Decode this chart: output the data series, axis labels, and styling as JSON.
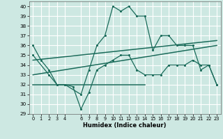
{
  "xlabel": "Humidex (Indice chaleur)",
  "xlim": [
    -0.5,
    23.5
  ],
  "ylim": [
    29,
    40.5
  ],
  "yticks": [
    29,
    30,
    31,
    32,
    33,
    34,
    35,
    36,
    37,
    38,
    39,
    40
  ],
  "xticks": [
    0,
    1,
    2,
    3,
    4,
    6,
    7,
    8,
    9,
    10,
    11,
    12,
    13,
    14,
    15,
    16,
    17,
    18,
    19,
    20,
    21,
    22,
    23
  ],
  "bg_color": "#cde8e2",
  "grid_color": "#ffffff",
  "line_color": "#1a6b5a",
  "line1_x": [
    0,
    1,
    2,
    3,
    4,
    6,
    7,
    8,
    9,
    10,
    11,
    12,
    13,
    14,
    15,
    16,
    17,
    18,
    19,
    20,
    21,
    22,
    23
  ],
  "line1_y": [
    36,
    34.5,
    33.5,
    32.0,
    32.0,
    31.0,
    33.5,
    36.0,
    37.0,
    40.0,
    39.5,
    40.0,
    39.0,
    39.0,
    35.5,
    37.0,
    37.0,
    36.0,
    36.0,
    36.0,
    33.5,
    34.0,
    32.0
  ],
  "line2_x": [
    0,
    2,
    3,
    4,
    5,
    6,
    7,
    8,
    9,
    10,
    11,
    12,
    13,
    14,
    15,
    16,
    17,
    18,
    19,
    20,
    21,
    22,
    23
  ],
  "line2_y": [
    35.0,
    33.0,
    32.0,
    32.0,
    31.8,
    29.5,
    31.2,
    33.5,
    34.0,
    34.5,
    35.0,
    35.0,
    33.5,
    33.0,
    33.0,
    33.0,
    34.0,
    34.0,
    34.0,
    34.5,
    34.0,
    34.0,
    32.0
  ],
  "line3_x": [
    0,
    14
  ],
  "line3_y": [
    32.0,
    32.0
  ],
  "line4_x": [
    0,
    23
  ],
  "line4_y": [
    33.0,
    36.0
  ],
  "line5_x": [
    0,
    23
  ],
  "line5_y": [
    34.5,
    36.5
  ]
}
